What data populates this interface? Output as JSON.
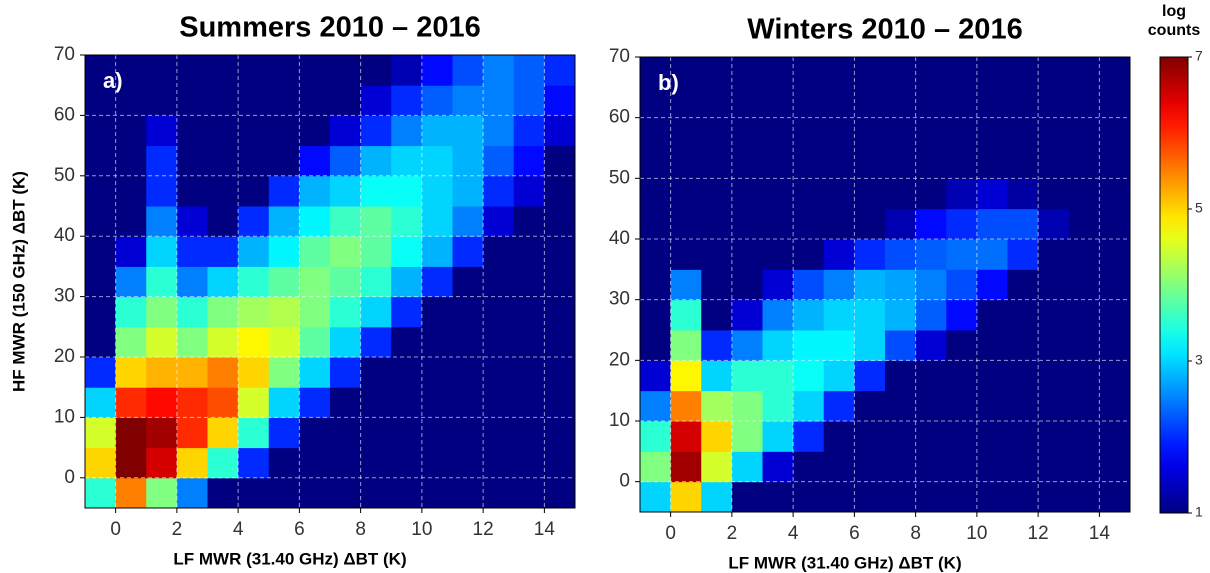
{
  "chart_data": [
    {
      "type": "heatmap",
      "title": "Summers 2010 – 2016",
      "panel_label": "a)",
      "xlabel": "LF MWR (31.40 GHz) ΔBT (K)",
      "ylabel": "HF MWR (150 GHz) ΔBT (K)",
      "xlim": [
        -1,
        15
      ],
      "ylim": [
        -5,
        70
      ],
      "xticks": [
        0,
        2,
        4,
        6,
        8,
        10,
        12,
        14
      ],
      "yticks": [
        0,
        10,
        20,
        30,
        40,
        50,
        60,
        70
      ],
      "grid": true,
      "colormap": "jet",
      "clim": [
        1,
        7
      ],
      "x_bins": [
        -1,
        0,
        1,
        2,
        3,
        4,
        5,
        6,
        7,
        8,
        9,
        10,
        11,
        12,
        13,
        14,
        15
      ],
      "y_bins": [
        -5,
        0,
        5,
        10,
        15,
        20,
        25,
        30,
        35,
        40,
        45,
        50,
        55,
        60,
        65,
        70
      ],
      "z": [
        [
          3.5,
          5.5,
          4,
          2.5,
          1,
          1,
          1,
          1,
          1,
          1,
          1,
          1,
          1,
          1,
          1,
          1
        ],
        [
          5,
          7,
          6.5,
          5,
          3.5,
          2,
          1,
          1,
          1,
          1,
          1,
          1,
          1,
          1,
          1,
          1
        ],
        [
          4.5,
          7,
          6.8,
          6,
          5,
          3.5,
          2,
          1,
          1,
          1,
          1,
          1,
          1,
          1,
          1,
          1
        ],
        [
          3,
          6,
          6.2,
          6,
          5.8,
          4.5,
          3,
          2,
          1,
          1,
          1,
          1,
          1,
          1,
          1,
          1
        ],
        [
          2,
          5,
          5.2,
          5.2,
          5.5,
          5,
          4,
          3,
          2,
          1,
          1,
          1,
          1,
          1,
          1,
          1
        ],
        [
          1,
          4,
          4.5,
          4,
          4.5,
          4.8,
          4.5,
          3.8,
          3,
          2,
          1,
          1,
          1,
          1,
          1,
          1
        ],
        [
          1,
          3.5,
          4,
          3.5,
          4,
          4.2,
          4.3,
          4,
          3.5,
          3,
          2,
          1,
          1,
          1,
          1,
          1
        ],
        [
          1,
          2.5,
          3.5,
          2.5,
          3,
          3.5,
          3.8,
          4,
          3.8,
          3.5,
          2.8,
          2,
          1,
          1,
          1,
          1
        ],
        [
          1,
          1.5,
          3,
          2,
          2,
          2.8,
          3.2,
          3.8,
          4,
          3.8,
          3.3,
          2.8,
          2,
          1,
          1,
          1
        ],
        [
          1,
          1,
          2.5,
          1.5,
          1,
          2,
          2.8,
          3.2,
          3.6,
          3.8,
          3.5,
          3,
          2.5,
          1.5,
          1,
          1
        ],
        [
          1,
          1,
          2,
          1,
          1,
          1,
          2,
          2.8,
          3,
          3.3,
          3.3,
          3,
          2.8,
          2,
          1.5,
          1
        ],
        [
          1,
          1,
          2,
          1,
          1,
          1,
          1,
          1.8,
          2.3,
          2.8,
          3,
          3,
          2.8,
          2.3,
          1.8,
          1
        ],
        [
          1,
          1,
          1.5,
          1,
          1,
          1,
          1,
          1,
          1.5,
          2,
          2.5,
          2.8,
          2.8,
          2.5,
          2,
          1.5
        ],
        [
          1,
          1,
          1,
          1,
          1,
          1,
          1,
          1,
          1,
          1.5,
          2,
          2.3,
          2.5,
          2.5,
          2.3,
          1.8
        ],
        [
          1,
          1,
          1,
          1,
          1,
          1,
          1,
          1,
          1,
          1,
          1.3,
          1.8,
          2.2,
          2.5,
          2.3,
          2
        ]
      ]
    },
    {
      "type": "heatmap",
      "title": "Winters 2010 – 2016",
      "panel_label": "b)",
      "xlabel": "LF MWR (31.40 GHz) ΔBT (K)",
      "xlim": [
        -1,
        15
      ],
      "ylim": [
        -5,
        70
      ],
      "xticks": [
        0,
        2,
        4,
        6,
        8,
        10,
        12,
        14
      ],
      "yticks": [
        0,
        10,
        20,
        30,
        40,
        50,
        60,
        70
      ],
      "grid": true,
      "colormap": "jet",
      "clim": [
        1,
        7
      ],
      "colorbar": {
        "label": "log counts",
        "lim": [
          1,
          7
        ],
        "ticks": [
          1,
          3,
          5,
          7
        ]
      },
      "x_bins": [
        -1,
        0,
        1,
        2,
        3,
        4,
        5,
        6,
        7,
        8,
        9,
        10,
        11,
        12,
        13,
        14,
        15
      ],
      "y_bins": [
        -5,
        0,
        5,
        10,
        15,
        20,
        25,
        30,
        35,
        40,
        45,
        50,
        55,
        60,
        65,
        70
      ],
      "z": [
        [
          3,
          5,
          3,
          1,
          1,
          1,
          1,
          1,
          1,
          1,
          1,
          1,
          1,
          1,
          1,
          1
        ],
        [
          4,
          6.8,
          4.5,
          3,
          1.5,
          1,
          1,
          1,
          1,
          1,
          1,
          1,
          1,
          1,
          1,
          1
        ],
        [
          3.5,
          6.5,
          5,
          4,
          3,
          2,
          1,
          1,
          1,
          1,
          1,
          1,
          1,
          1,
          1,
          1
        ],
        [
          2.5,
          5.5,
          4.2,
          4,
          3.5,
          3,
          2,
          1,
          1,
          1,
          1,
          1,
          1,
          1,
          1,
          1
        ],
        [
          1.5,
          4.8,
          3,
          3.5,
          3.5,
          3.3,
          3,
          2,
          1,
          1,
          1,
          1,
          1,
          1,
          1,
          1
        ],
        [
          1,
          4,
          2,
          2.5,
          3,
          3.2,
          3.2,
          3,
          2.2,
          1.5,
          1,
          1,
          1,
          1,
          1,
          1
        ],
        [
          1,
          3.5,
          1,
          1.5,
          2.5,
          2.8,
          3,
          3,
          2.8,
          2.3,
          1.8,
          1,
          1,
          1,
          1,
          1
        ],
        [
          1,
          2.5,
          1,
          1,
          1.5,
          2.2,
          2.5,
          2.8,
          2.7,
          2.5,
          2.2,
          1.8,
          1,
          1,
          1,
          1
        ],
        [
          1,
          1,
          1,
          1,
          1,
          1,
          1.5,
          2,
          2.2,
          2.3,
          2.4,
          2.4,
          2,
          1,
          1,
          1
        ],
        [
          1,
          1,
          1,
          1,
          1,
          1,
          1,
          1,
          1.3,
          1.8,
          2,
          2.2,
          2.2,
          1.3,
          1,
          1
        ],
        [
          1,
          1,
          1,
          1,
          1,
          1,
          1,
          1,
          1,
          1,
          1.3,
          1.5,
          1.2,
          1,
          1,
          1
        ],
        [
          1,
          1,
          1,
          1,
          1,
          1,
          1,
          1,
          1,
          1,
          1,
          1,
          1,
          1,
          1,
          1
        ],
        [
          1,
          1,
          1,
          1,
          1,
          1,
          1,
          1,
          1,
          1,
          1,
          1,
          1,
          1,
          1,
          1
        ],
        [
          1,
          1,
          1,
          1,
          1,
          1,
          1,
          1,
          1,
          1,
          1,
          1,
          1,
          1,
          1,
          1
        ],
        [
          1,
          1,
          1,
          1,
          1,
          1,
          1,
          1,
          1,
          1,
          1,
          1,
          1,
          1,
          1,
          1
        ]
      ]
    }
  ]
}
